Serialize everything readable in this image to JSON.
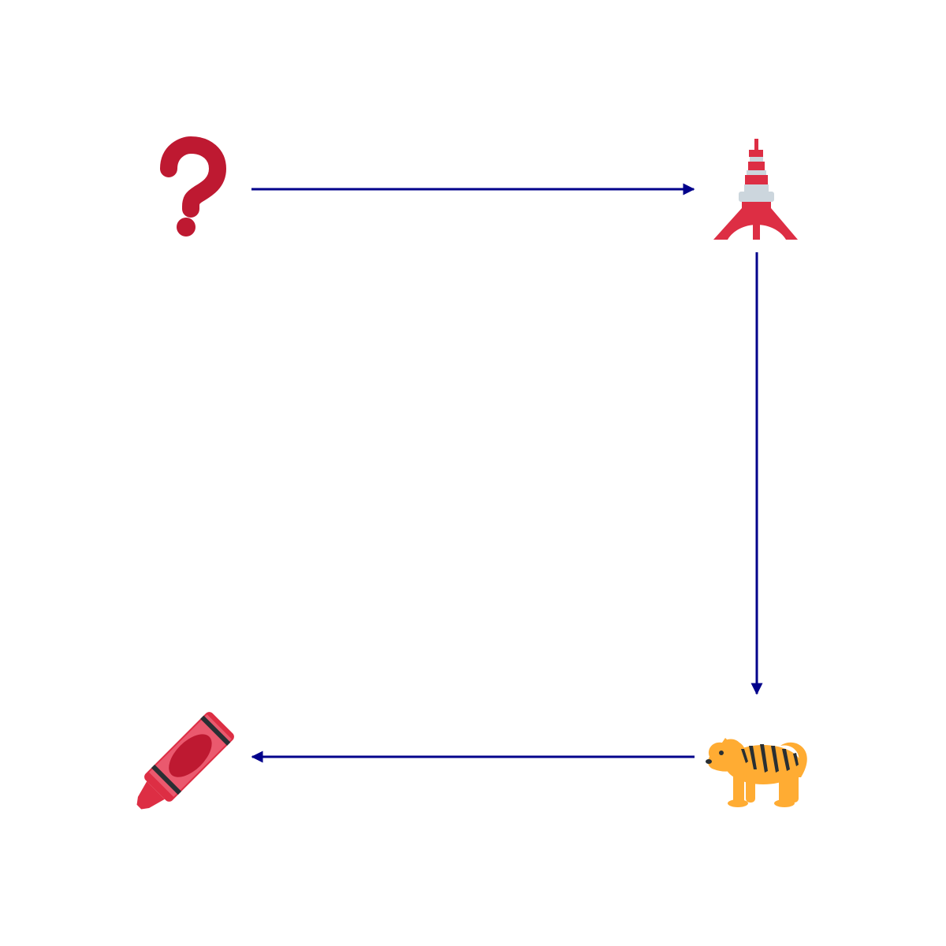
{
  "diagram": {
    "colors": {
      "background": "#ffffff",
      "arrow": "#00008b",
      "question_red": "#be1931",
      "tower_red": "#dd2e44",
      "tower_gray": "#ccd6dd",
      "crayon_red": "#dd2e44",
      "crayon_light": "#ea596e",
      "crayon_dark": "#be1931",
      "crayon_band": "#292f33",
      "tiger_orange": "#ffac33",
      "tiger_stripe": "#292f33"
    },
    "nodes": [
      {
        "id": "question",
        "icon": "question-mark-icon"
      },
      {
        "id": "tower",
        "icon": "tokyo-tower-icon"
      },
      {
        "id": "tiger",
        "icon": "tiger-icon"
      },
      {
        "id": "crayon",
        "icon": "crayon-icon"
      }
    ],
    "edges": [
      {
        "from": "question",
        "to": "tower"
      },
      {
        "from": "tower",
        "to": "tiger"
      },
      {
        "from": "tiger",
        "to": "crayon"
      }
    ]
  }
}
